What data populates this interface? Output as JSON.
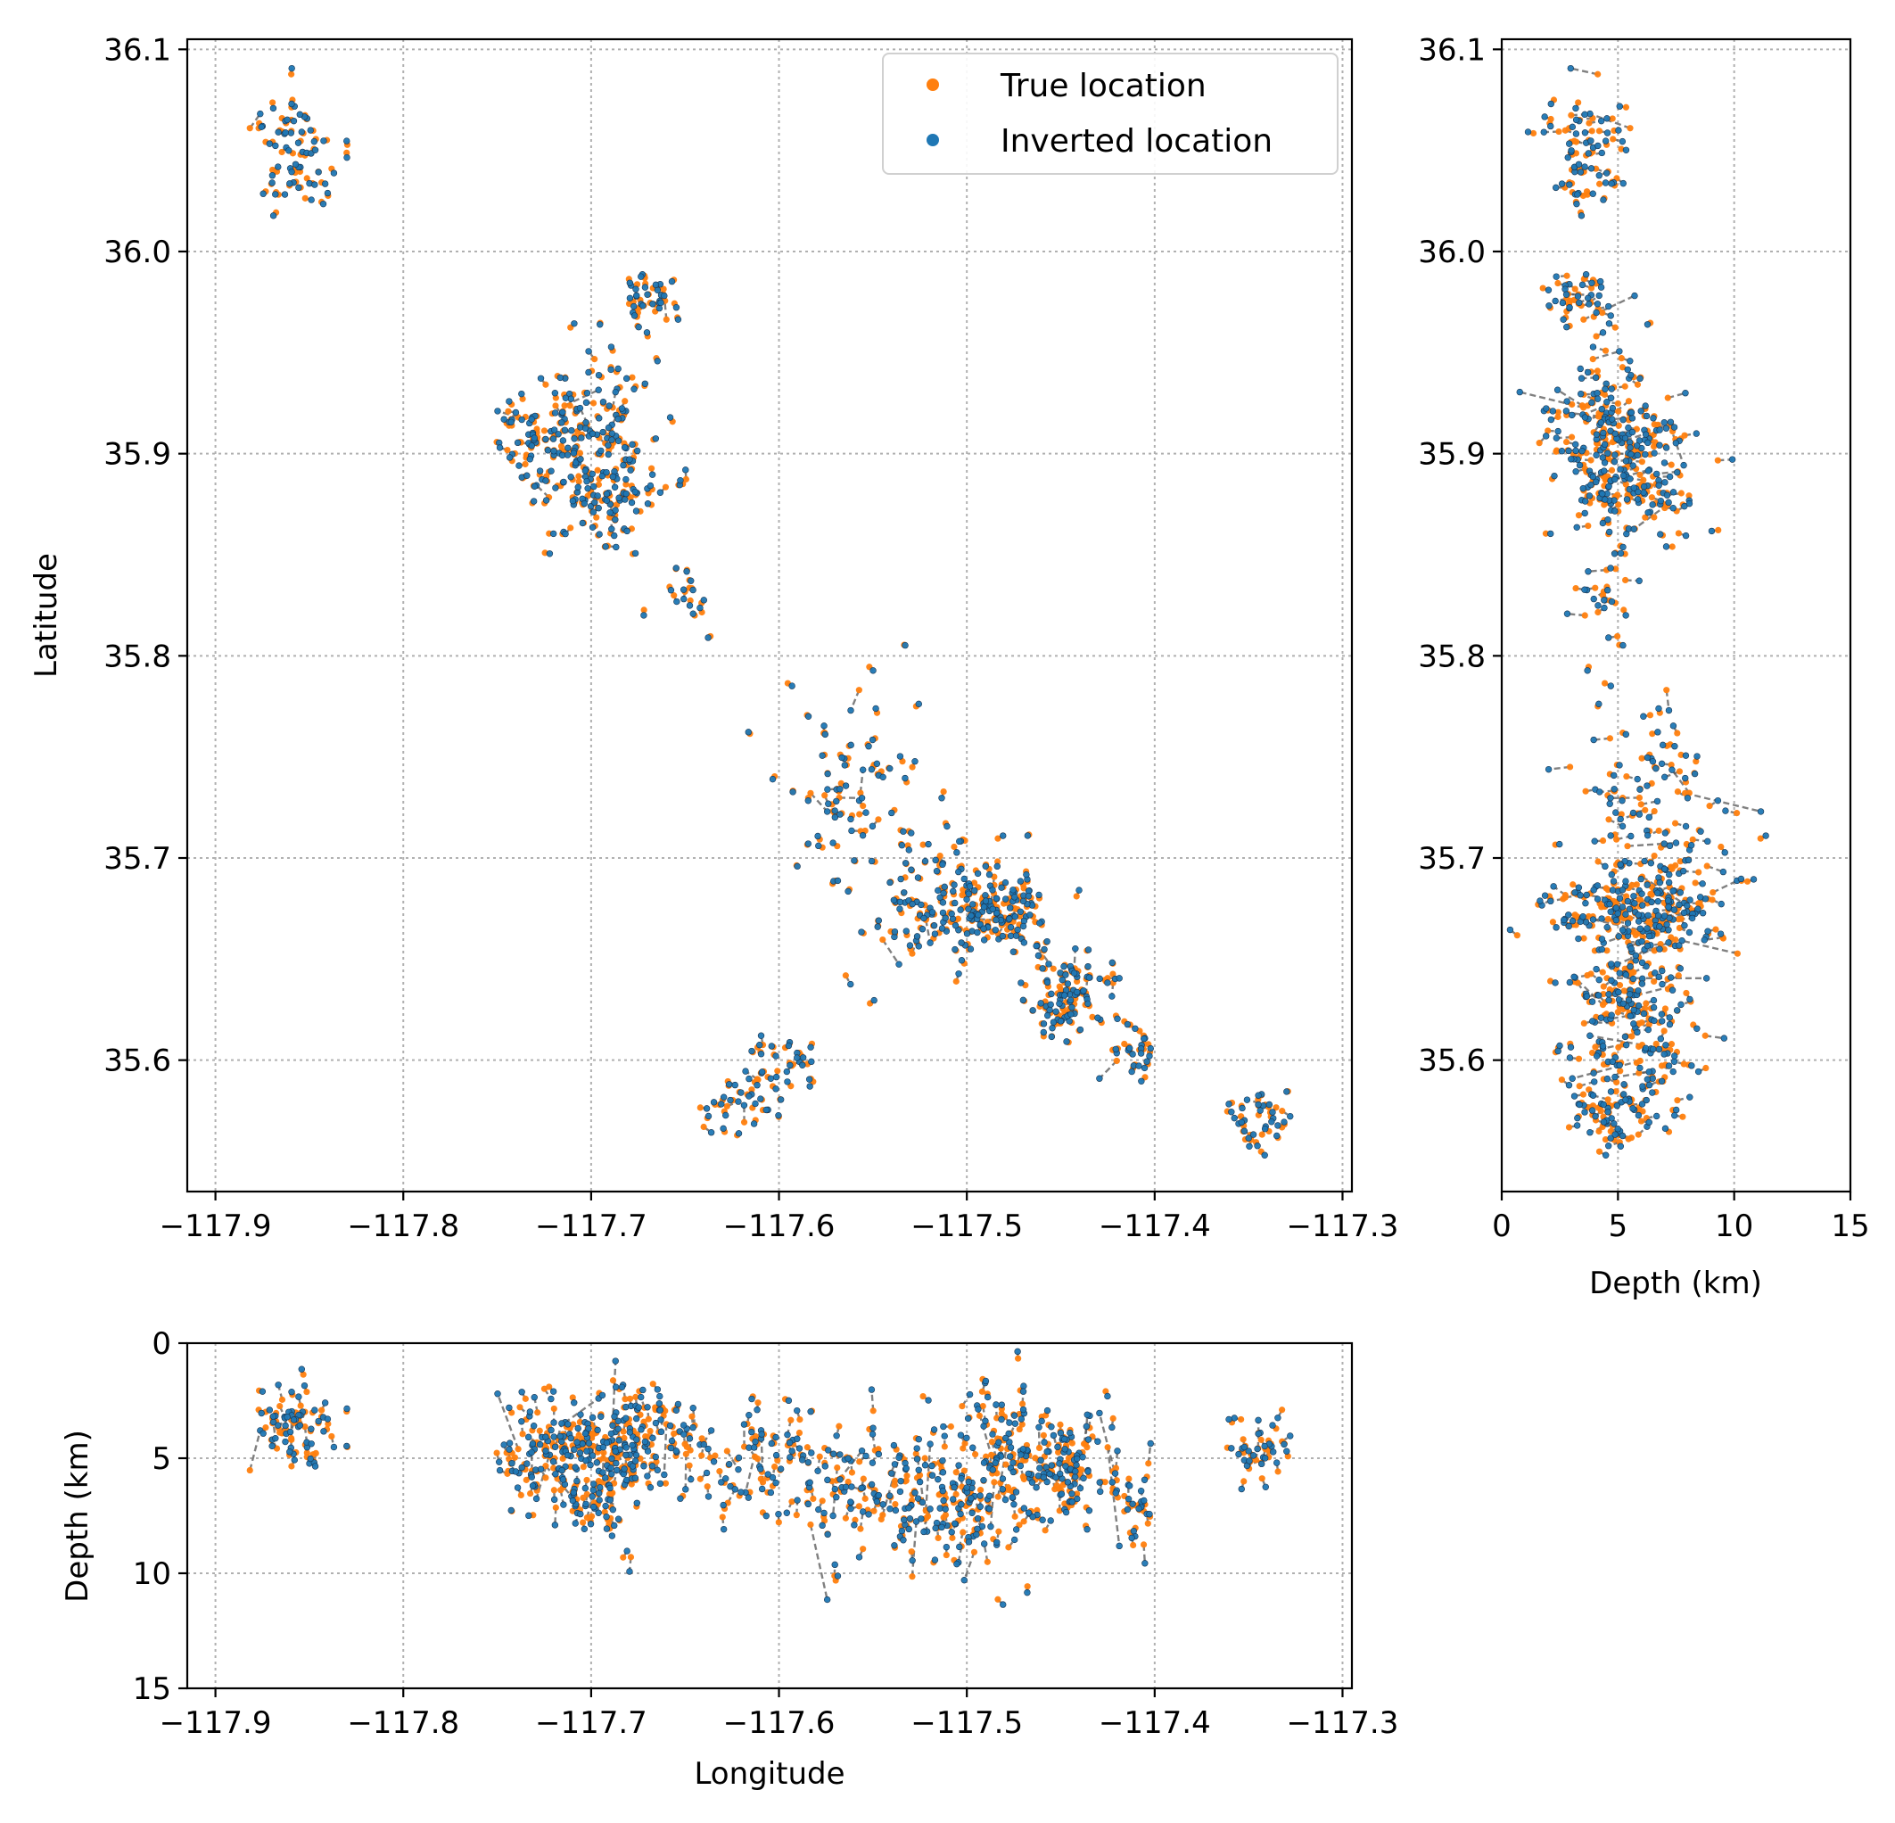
{
  "chart_data": [
    {
      "id": "map",
      "type": "scatter",
      "title": "",
      "xlabel": "",
      "ylabel": "Latitude",
      "xlim": [
        -117.915,
        -117.295
      ],
      "ylim": [
        35.535,
        36.105
      ],
      "xticks": [
        -117.9,
        -117.8,
        -117.7,
        -117.6,
        -117.5,
        -117.4,
        -117.3
      ],
      "xtick_labels": [
        "−117.9",
        "−117.8",
        "−117.7",
        "−117.6",
        "−117.5",
        "−117.4",
        "−117.3"
      ],
      "yticks": [
        35.6,
        35.7,
        35.8,
        35.9,
        36.0,
        36.1
      ],
      "ytick_labels": [
        "35.6",
        "35.7",
        "35.8",
        "35.9",
        "36.0",
        "36.1"
      ],
      "grid": true,
      "legend": {
        "position": "top-right",
        "entries": [
          {
            "label": "True location",
            "color": "#ff7f0e"
          },
          {
            "label": "Inverted location",
            "color": "#1f77b4"
          }
        ]
      }
    },
    {
      "id": "depth-lat",
      "type": "scatter",
      "xlabel": "Depth (km)",
      "ylabel": "",
      "xlim": [
        0,
        15
      ],
      "ylim": [
        35.535,
        36.105
      ],
      "xticks": [
        0,
        5,
        10,
        15
      ],
      "xtick_labels": [
        "0",
        "5",
        "10",
        "15"
      ],
      "yticks": [
        35.6,
        35.7,
        35.8,
        35.9,
        36.0,
        36.1
      ],
      "ytick_labels": [
        "35.6",
        "35.7",
        "35.8",
        "35.9",
        "36.0",
        "36.1"
      ],
      "grid": true
    },
    {
      "id": "lon-depth",
      "type": "scatter",
      "xlabel": "Longitude",
      "ylabel": "Depth (km)",
      "xlim": [
        -117.915,
        -117.295
      ],
      "ylim": [
        15,
        0
      ],
      "xticks": [
        -117.9,
        -117.8,
        -117.7,
        -117.6,
        -117.5,
        -117.4,
        -117.3
      ],
      "xtick_labels": [
        "−117.9",
        "−117.8",
        "−117.7",
        "−117.6",
        "−117.5",
        "−117.4",
        "−117.3"
      ],
      "yticks": [
        0,
        5,
        10,
        15
      ],
      "ytick_labels": [
        "0",
        "5",
        "10",
        "15"
      ],
      "grid": true
    }
  ],
  "events": {
    "description_series": [
      "True location",
      "Inverted location"
    ],
    "colors": {
      "true": "#ff7f0e",
      "inverted": "#1f77b4",
      "connector": "#555555"
    },
    "clusters": [
      {
        "lon": -117.857,
        "lat": 36.047,
        "depth": 3.6,
        "n": 55,
        "slon": 0.011,
        "slat": 0.013,
        "sdep": 0.9,
        "along": 0
      },
      {
        "lon": -117.7,
        "lat": 35.905,
        "depth": 4.6,
        "n": 150,
        "slon": 0.018,
        "slat": 0.022,
        "sdep": 1.3,
        "along": 0
      },
      {
        "lon": -117.735,
        "lat": 35.905,
        "depth": 5.0,
        "n": 25,
        "slon": 0.008,
        "slat": 0.01,
        "sdep": 1.0,
        "along": 0
      },
      {
        "lon": -117.668,
        "lat": 35.975,
        "depth": 3.4,
        "n": 30,
        "slon": 0.008,
        "slat": 0.008,
        "sdep": 0.8,
        "along": 0
      },
      {
        "lon": -117.688,
        "lat": 35.88,
        "depth": 6.5,
        "n": 40,
        "slon": 0.01,
        "slat": 0.012,
        "sdep": 1.3,
        "along": 0
      },
      {
        "lon": -117.65,
        "lat": 35.83,
        "depth": 4.3,
        "n": 14,
        "slon": 0.007,
        "slat": 0.007,
        "sdep": 0.6,
        "along": 0
      },
      {
        "lon": -117.56,
        "lat": 35.73,
        "depth": 6.2,
        "n": 60,
        "slon": 0.02,
        "slat": 0.028,
        "sdep": 1.5,
        "along": 0
      },
      {
        "lon": -117.51,
        "lat": 35.68,
        "depth": 6.8,
        "n": 110,
        "slon": 0.02,
        "slat": 0.017,
        "sdep": 1.6,
        "along": 0
      },
      {
        "lon": -117.48,
        "lat": 35.672,
        "depth": 5.0,
        "n": 70,
        "slon": 0.01,
        "slat": 0.008,
        "sdep": 1.6,
        "along": 0
      },
      {
        "lon": -117.445,
        "lat": 35.633,
        "depth": 5.5,
        "n": 80,
        "slon": 0.012,
        "slat": 0.01,
        "sdep": 1.3,
        "along": 0
      },
      {
        "lon": -117.41,
        "lat": 35.603,
        "depth": 7.2,
        "n": 22,
        "slon": 0.008,
        "slat": 0.006,
        "sdep": 0.8,
        "along": 0
      },
      {
        "lon": -117.6,
        "lat": 35.6,
        "depth": 4.8,
        "n": 28,
        "slon": 0.01,
        "slat": 0.01,
        "sdep": 1.2,
        "along": 0
      },
      {
        "lon": -117.625,
        "lat": 35.575,
        "depth": 5.5,
        "n": 24,
        "slon": 0.01,
        "slat": 0.007,
        "sdep": 0.9,
        "along": 0
      },
      {
        "lon": -117.345,
        "lat": 35.572,
        "depth": 4.4,
        "n": 30,
        "slon": 0.011,
        "slat": 0.007,
        "sdep": 0.9,
        "along": 0
      }
    ]
  }
}
